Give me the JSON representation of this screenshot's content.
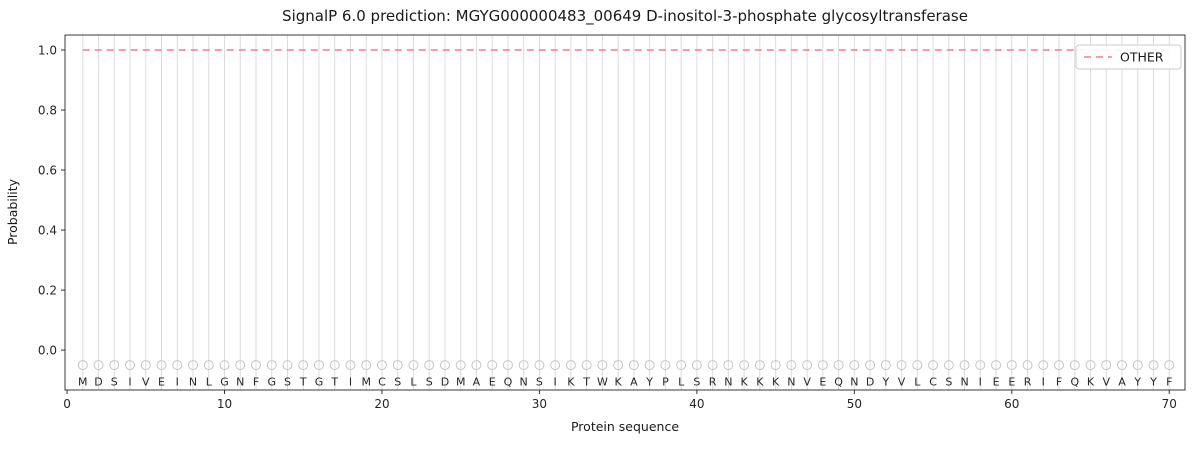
{
  "chart_data": {
    "type": "line",
    "title": "SignalP 6.0 prediction: MGYG000000483_00649 D-inositol-3-phosphate glycosyltransferase",
    "xlabel": "Protein sequence",
    "ylabel": "Probability",
    "xlim": [
      -0.13,
      71.0
    ],
    "ylim": [
      -0.133,
      1.05
    ],
    "x_ticks": [
      0,
      10,
      20,
      30,
      40,
      50,
      60,
      70
    ],
    "y_ticks": [
      0.0,
      0.2,
      0.4,
      0.6,
      0.8,
      1.0
    ],
    "grid": "light vertical gridline at each residue position, no horizontal gridlines",
    "legend": {
      "position": "upper right",
      "entries": [
        {
          "label": "OTHER",
          "color": "#f08080",
          "line_style": "dashed"
        }
      ]
    },
    "series": [
      {
        "name": "OTHER",
        "color": "#f08080",
        "line_style": "dashed",
        "x_start": 1,
        "values": [
          1.0,
          1.0,
          1.0,
          1.0,
          1.0,
          1.0,
          1.0,
          1.0,
          1.0,
          1.0,
          1.0,
          1.0,
          1.0,
          1.0,
          1.0,
          1.0,
          1.0,
          1.0,
          1.0,
          1.0,
          1.0,
          1.0,
          1.0,
          1.0,
          1.0,
          1.0,
          1.0,
          1.0,
          1.0,
          1.0,
          1.0,
          1.0,
          1.0,
          1.0,
          1.0,
          1.0,
          1.0,
          1.0,
          1.0,
          1.0,
          1.0,
          1.0,
          1.0,
          1.0,
          1.0,
          1.0,
          1.0,
          1.0,
          1.0,
          1.0,
          1.0,
          1.0,
          1.0,
          1.0,
          1.0,
          1.0,
          1.0,
          1.0,
          1.0,
          1.0,
          1.0,
          1.0,
          1.0,
          1.0,
          1.0,
          1.0,
          1.0,
          1.0,
          1.0,
          1.0
        ]
      }
    ],
    "sequence": "MDSIVEINLGNFGSTGTIMCSLSDMAEQNSIKTWKAYPLSRNKKKNVEQNDYVLCSNIEERIFQKVAYYF",
    "residue_marker": {
      "shape": "open-circle",
      "y": -0.05,
      "color": "#c6c6c6"
    },
    "residue_label_y": -0.105
  }
}
